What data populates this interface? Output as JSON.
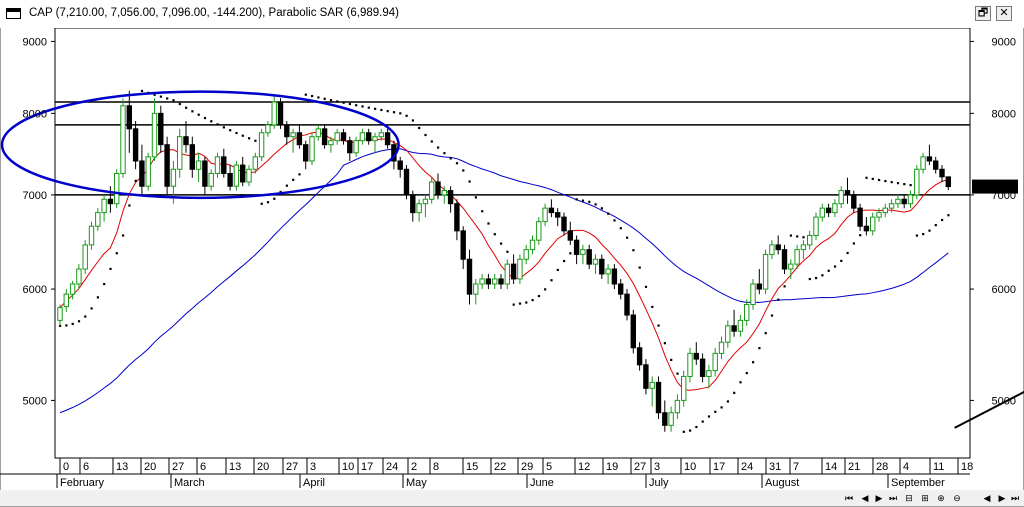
{
  "window": {
    "title": "CAP (7,210.00, 7,056.00, 7,096.00, -144.200), Parabolic SAR (6,989.94)",
    "restore_label": "🗗",
    "close_label": "✕"
  },
  "price_axis": {
    "ticks_left": [
      "9000",
      "8000",
      "7000",
      "6000",
      "5000"
    ],
    "ticks_right": [
      "9000",
      "8000",
      "7000",
      "6000",
      "5000"
    ],
    "last_price_label": "7096.00"
  },
  "time_axis": {
    "day_labels": [
      "0",
      "6",
      "13",
      "20",
      "27",
      "6",
      "13",
      "20",
      "27",
      "3",
      "10",
      "17",
      "24",
      "2",
      "8",
      "15",
      "22",
      "29",
      "5",
      "12",
      "19",
      "27",
      "3",
      "10",
      "17",
      "24",
      "31",
      "7",
      "14",
      "21",
      "28",
      "4",
      "11",
      "18"
    ],
    "month_labels": [
      "February",
      "March",
      "April",
      "May",
      "June",
      "July",
      "August",
      "September"
    ]
  },
  "scrollbar": {
    "buttons": [
      "⏮",
      "◀",
      "▶",
      "⏭",
      "⊟",
      "⊞",
      "⊕",
      "⊖"
    ]
  },
  "chart_data": {
    "type": "candlestick",
    "symbol": "CAP",
    "indicators": [
      "Parabolic SAR",
      "moving average (red)",
      "moving average (blue)"
    ],
    "y_scale": "log",
    "ylim": [
      4550,
      9200
    ],
    "last_ohlc": {
      "open": 7210.0,
      "high": 7210.0,
      "low": 7056.0,
      "close": 7096.0,
      "change": -144.2
    },
    "parabolic_sar_last": 6989.94,
    "horizontal_lines": [
      8150,
      7850,
      7000
    ],
    "ellipse_annotation": {
      "x_start_day": 0,
      "x_end_day": 42,
      "y_low": 7000,
      "y_high": 8250
    },
    "trendlines": [
      {
        "from": {
          "day": 142,
          "price": 4780
        },
        "to": {
          "day": 224,
          "price": 7400
        }
      }
    ],
    "colors": {
      "up": "#1a9a1a",
      "down": "#000000",
      "fast_ma": "#e00000",
      "slow_ma": "#0000cc",
      "annotation": "#0000cc",
      "sar": "#000000"
    },
    "candles_note": "daily candles, day 0 = 31 Jan",
    "candles": [
      [
        5700,
        5850,
        5650,
        5820
      ],
      [
        5830,
        6000,
        5780,
        5950
      ],
      [
        5950,
        6080,
        5900,
        6050
      ],
      [
        6050,
        6250,
        6000,
        6200
      ],
      [
        6200,
        6500,
        6150,
        6450
      ],
      [
        6450,
        6700,
        6400,
        6650
      ],
      [
        6650,
        6850,
        6600,
        6800
      ],
      [
        6800,
        7000,
        6700,
        6950
      ],
      [
        6950,
        7100,
        6800,
        6900
      ],
      [
        6900,
        7300,
        6850,
        7250
      ],
      [
        7250,
        8200,
        7200,
        8100
      ],
      [
        8100,
        8300,
        7500,
        7800
      ],
      [
        7800,
        7900,
        7300,
        7400
      ],
      [
        7400,
        7600,
        7000,
        7100
      ],
      [
        7100,
        7500,
        7050,
        7450
      ],
      [
        7450,
        8200,
        7400,
        8000
      ],
      [
        8000,
        8100,
        7500,
        7600
      ],
      [
        7600,
        7700,
        7000,
        7100
      ],
      [
        7100,
        7400,
        6900,
        7300
      ],
      [
        7300,
        7800,
        7200,
        7700
      ],
      [
        7700,
        7900,
        7500,
        7600
      ],
      [
        7600,
        7700,
        7200,
        7300
      ],
      [
        7300,
        7500,
        7150,
        7400
      ],
      [
        7400,
        7450,
        7000,
        7100
      ],
      [
        7100,
        7300,
        7050,
        7250
      ],
      [
        7250,
        7500,
        7200,
        7450
      ],
      [
        7450,
        7550,
        7200,
        7250
      ],
      [
        7250,
        7350,
        7050,
        7100
      ],
      [
        7100,
        7400,
        7050,
        7350
      ],
      [
        7350,
        7450,
        7100,
        7150
      ],
      [
        7150,
        7350,
        7100,
        7300
      ],
      [
        7300,
        7500,
        7250,
        7450
      ],
      [
        7450,
        7800,
        7400,
        7750
      ],
      [
        7750,
        7900,
        7700,
        7850
      ],
      [
        7850,
        8250,
        7800,
        8150
      ],
      [
        8150,
        8200,
        7800,
        7850
      ],
      [
        7850,
        7900,
        7600,
        7700
      ],
      [
        7700,
        7800,
        7500,
        7750
      ],
      [
        7750,
        7850,
        7550,
        7600
      ],
      [
        7600,
        7650,
        7300,
        7400
      ],
      [
        7400,
        7750,
        7350,
        7700
      ],
      [
        7700,
        7850,
        7650,
        7800
      ],
      [
        7800,
        7850,
        7550,
        7600
      ],
      [
        7600,
        7700,
        7500,
        7650
      ],
      [
        7650,
        7800,
        7600,
        7750
      ],
      [
        7750,
        7800,
        7600,
        7650
      ],
      [
        7650,
        7700,
        7400,
        7500
      ],
      [
        7500,
        7700,
        7450,
        7650
      ],
      [
        7650,
        7800,
        7600,
        7750
      ],
      [
        7750,
        7800,
        7600,
        7650
      ],
      [
        7650,
        7750,
        7500,
        7700
      ],
      [
        7700,
        7800,
        7650,
        7750
      ],
      [
        7750,
        7800,
        7550,
        7600
      ],
      [
        7600,
        7650,
        7300,
        7400
      ],
      [
        7400,
        7450,
        7200,
        7300
      ],
      [
        7300,
        7350,
        6950,
        7000
      ],
      [
        7000,
        7050,
        6700,
        6800
      ],
      [
        6800,
        6950,
        6700,
        6900
      ],
      [
        6900,
        7000,
        6750,
        6950
      ],
      [
        6950,
        7200,
        6900,
        7150
      ],
      [
        7150,
        7250,
        6950,
        7000
      ],
      [
        7000,
        7100,
        6900,
        7050
      ],
      [
        7050,
        7100,
        6800,
        6900
      ],
      [
        6900,
        6950,
        6500,
        6600
      ],
      [
        6600,
        6650,
        6200,
        6300
      ],
      [
        6300,
        6400,
        5850,
        5950
      ],
      [
        5950,
        6100,
        5850,
        6050
      ],
      [
        6050,
        6150,
        6000,
        6100
      ],
      [
        6100,
        6150,
        6000,
        6050
      ],
      [
        6050,
        6150,
        6000,
        6100
      ],
      [
        6100,
        6150,
        6000,
        6050
      ],
      [
        6050,
        6300,
        6000,
        6250
      ],
      [
        6250,
        6350,
        6050,
        6100
      ],
      [
        6100,
        6350,
        6050,
        6300
      ],
      [
        6300,
        6450,
        6250,
        6400
      ],
      [
        6400,
        6550,
        6350,
        6500
      ],
      [
        6500,
        6750,
        6450,
        6700
      ],
      [
        6700,
        6900,
        6650,
        6850
      ],
      [
        6850,
        6950,
        6750,
        6800
      ],
      [
        6800,
        6850,
        6650,
        6750
      ],
      [
        6750,
        6800,
        6550,
        6600
      ],
      [
        6600,
        6700,
        6450,
        6500
      ],
      [
        6500,
        6550,
        6250,
        6350
      ],
      [
        6350,
        6450,
        6250,
        6400
      ],
      [
        6400,
        6450,
        6200,
        6250
      ],
      [
        6250,
        6350,
        6150,
        6300
      ],
      [
        6300,
        6350,
        6100,
        6150
      ],
      [
        6150,
        6250,
        6050,
        6200
      ],
      [
        6200,
        6250,
        6000,
        6050
      ],
      [
        6050,
        6100,
        5900,
        5950
      ],
      [
        5950,
        6000,
        5700,
        5750
      ],
      [
        5750,
        5800,
        5400,
        5450
      ],
      [
        5450,
        5500,
        5250,
        5300
      ],
      [
        5300,
        5350,
        5050,
        5100
      ],
      [
        5100,
        5200,
        4950,
        5150
      ],
      [
        5150,
        5200,
        4850,
        4900
      ],
      [
        4900,
        5000,
        4750,
        4800
      ],
      [
        4800,
        4950,
        4750,
        4900
      ],
      [
        4900,
        5050,
        4850,
        5000
      ],
      [
        5000,
        5250,
        4950,
        5200
      ],
      [
        5200,
        5450,
        5150,
        5400
      ],
      [
        5400,
        5500,
        5300,
        5350
      ],
      [
        5350,
        5400,
        5150,
        5200
      ],
      [
        5200,
        5300,
        5100,
        5250
      ],
      [
        5250,
        5450,
        5200,
        5400
      ],
      [
        5400,
        5550,
        5350,
        5500
      ],
      [
        5500,
        5700,
        5450,
        5650
      ],
      [
        5650,
        5800,
        5550,
        5600
      ],
      [
        5600,
        5750,
        5550,
        5700
      ],
      [
        5700,
        5900,
        5650,
        5850
      ],
      [
        5850,
        6100,
        5800,
        6050
      ],
      [
        6050,
        6200,
        5950,
        6000
      ],
      [
        6000,
        6400,
        5950,
        6350
      ],
      [
        6350,
        6500,
        6300,
        6450
      ],
      [
        6450,
        6550,
        6350,
        6400
      ],
      [
        6400,
        6450,
        6150,
        6200
      ],
      [
        6200,
        6300,
        6100,
        6250
      ],
      [
        6250,
        6450,
        6200,
        6400
      ],
      [
        6400,
        6500,
        6300,
        6450
      ],
      [
        6450,
        6600,
        6400,
        6550
      ],
      [
        6550,
        6800,
        6500,
        6750
      ],
      [
        6750,
        6900,
        6700,
        6850
      ],
      [
        6850,
        6900,
        6750,
        6800
      ],
      [
        6800,
        6950,
        6750,
        6900
      ],
      [
        6900,
        7100,
        6850,
        7050
      ],
      [
        7050,
        7200,
        6900,
        7000
      ],
      [
        7000,
        7050,
        6800,
        6850
      ],
      [
        6850,
        6900,
        6600,
        6650
      ],
      [
        6650,
        6750,
        6550,
        6600
      ],
      [
        6600,
        6800,
        6550,
        6750
      ],
      [
        6750,
        6850,
        6700,
        6800
      ],
      [
        6800,
        6900,
        6750,
        6850
      ],
      [
        6850,
        6950,
        6800,
        6900
      ],
      [
        6900,
        7000,
        6850,
        6950
      ],
      [
        6950,
        7000,
        6850,
        6900
      ],
      [
        6900,
        7050,
        6850,
        7000
      ],
      [
        7000,
        7350,
        6950,
        7300
      ],
      [
        7300,
        7500,
        7250,
        7450
      ],
      [
        7450,
        7600,
        7350,
        7400
      ],
      [
        7400,
        7450,
        7250,
        7300
      ],
      [
        7300,
        7350,
        7150,
        7210
      ],
      [
        7210,
        7210,
        7056,
        7096
      ]
    ]
  }
}
